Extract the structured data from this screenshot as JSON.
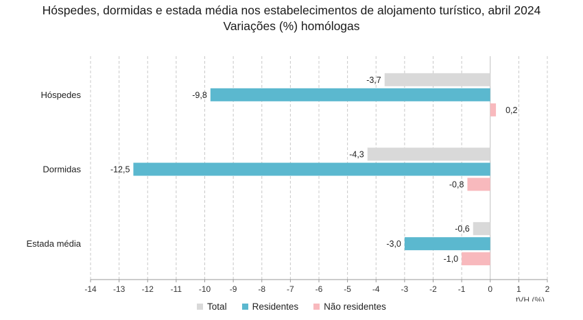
{
  "chart_data": {
    "type": "bar",
    "orientation": "horizontal",
    "title": "Hóspedes, dormidas e estada média nos estabelecimentos de alojamento turístico, abril 2024",
    "subtitle": "Variações (%) homólogas",
    "xlabel": "tVH (%)",
    "xlim": [
      -14,
      2
    ],
    "xticks": [
      -14,
      -13,
      -12,
      -11,
      -10,
      -9,
      -8,
      -7,
      -6,
      -5,
      -4,
      -3,
      -2,
      -1,
      0,
      1,
      2
    ],
    "grid": "vertical dashed",
    "legend_position": "bottom",
    "categories": [
      "Hóspedes",
      "Dormidas",
      "Estada média"
    ],
    "series": [
      {
        "name": "Total",
        "color": "#d9d9d9",
        "values": [
          -3.7,
          -4.3,
          -0.6
        ],
        "labels": [
          "-3,7",
          "-4,3",
          "-0,6"
        ]
      },
      {
        "name": "Residentes",
        "color": "#5bb8cf",
        "values": [
          -9.8,
          -12.5,
          -3.0
        ],
        "labels": [
          "-9,8",
          "-12,5",
          "-3,0"
        ]
      },
      {
        "name": "Não residentes",
        "color": "#f8b9bd",
        "values": [
          0.2,
          -0.8,
          -1.0
        ],
        "labels": [
          "0,2",
          "-0,8",
          "-1,0"
        ]
      }
    ]
  }
}
